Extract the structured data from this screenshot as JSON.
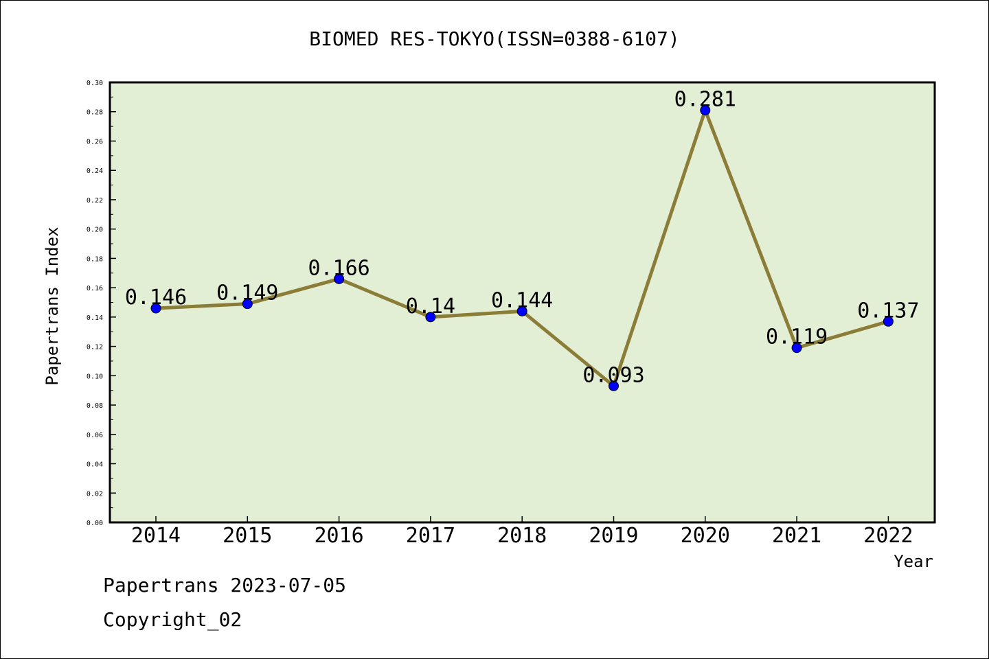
{
  "chart_data": {
    "type": "line",
    "title": "BIOMED RES-TOKYO(ISSN=0388-6107)",
    "xlabel": "Year",
    "ylabel": "Papertrans Index",
    "categories": [
      "2014",
      "2015",
      "2016",
      "2017",
      "2018",
      "2019",
      "2020",
      "2021",
      "2022"
    ],
    "series": [
      {
        "values": [
          0.146,
          0.149,
          0.166,
          0.14,
          0.144,
          0.093,
          0.281,
          0.119,
          0.137
        ],
        "data_labels": [
          "0.146",
          "0.149",
          "0.166",
          "0.14",
          "0.144",
          "0.093",
          "0.281",
          "0.119",
          "0.137"
        ]
      }
    ],
    "ylim": [
      0,
      0.3
    ],
    "yticks": [
      0.0,
      0.02,
      0.04,
      0.06,
      0.08,
      0.1,
      0.12,
      0.14,
      0.16,
      0.18,
      0.2,
      0.22,
      0.24,
      0.26,
      0.28,
      0.3
    ],
    "ytick_labels": [
      "0.00",
      "0.02",
      "0.04",
      "0.06",
      "0.08",
      "0.10",
      "0.12",
      "0.14",
      "0.16",
      "0.18",
      "0.20",
      "0.22",
      "0.24",
      "0.26",
      "0.28",
      "0.30"
    ],
    "grid": false,
    "legend": "none",
    "colors": {
      "plot_background": "#e2efd5",
      "line": "#8b7d37",
      "marker": "#0000ff"
    }
  },
  "footer": {
    "line1": "Papertrans 2023-07-05",
    "line2": "Copyright_02"
  }
}
